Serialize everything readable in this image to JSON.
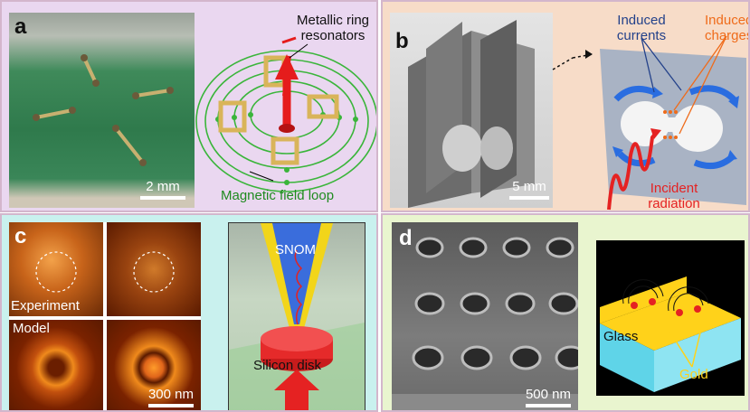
{
  "panels": {
    "a": {
      "label": "a",
      "annotation_ring": "Metallic ring\nresonators",
      "annotation_ring_l1": "Metallic ring",
      "annotation_ring_l2": "resonators",
      "annotation_field": "Magnetic field loop",
      "scale_bar": "2 mm",
      "colors": {
        "background": "#ead7f0",
        "field_line": "#3ab53a",
        "ring": "#d9b45a",
        "arrow": "#e51c1c"
      }
    },
    "b": {
      "label": "b",
      "annotation_currents_l1": "Induced",
      "annotation_currents_l2": "currents",
      "annotation_charges_l1": "Induced",
      "annotation_charges_l2": "charges",
      "annotation_radiation_l1": "Incident",
      "annotation_radiation_l2": "radiation",
      "scale_bar": "5 mm",
      "colors": {
        "background": "#f7dcc8",
        "currents": "#23418a",
        "charges": "#ef6b1a",
        "radiation": "#e52222"
      }
    },
    "c": {
      "label": "c",
      "row_experiment": "Experiment",
      "row_model": "Model",
      "annotation_snom": "SNOM",
      "annotation_disk": "Silicon disk",
      "scale_bar": "300 nm",
      "colors": {
        "background": "#c9f1ee",
        "heat_dark": "#5a1a00",
        "heat_light": "#f08a1c"
      }
    },
    "d": {
      "label": "d",
      "annotation_glass": "Glass",
      "annotation_gold": "Gold",
      "scale_bar": "500 nm",
      "colors": {
        "background": "#e9f5cf",
        "gold": "#ffd21a",
        "glass": "#5fd4e8"
      }
    }
  }
}
